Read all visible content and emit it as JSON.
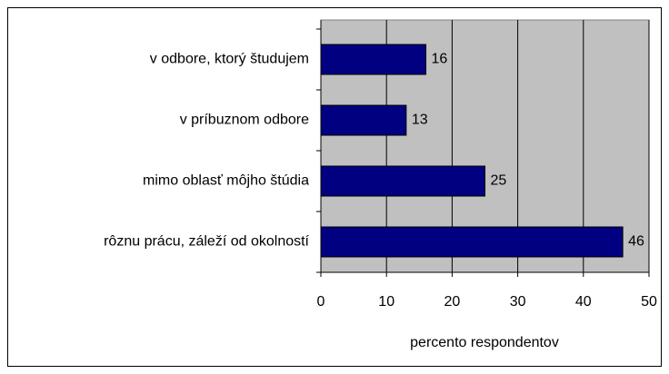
{
  "chart_data": {
    "type": "bar",
    "orientation": "horizontal",
    "categories": [
      "v odbore, ktorý študujem",
      "v príbuznom odbore",
      "mimo oblasť môjho štúdia",
      "rôznu prácu, záleží od okolností"
    ],
    "values": [
      16,
      13,
      25,
      46
    ],
    "color": "#000080",
    "xlabel": "percento respondentov",
    "xlim": [
      0,
      50
    ],
    "xticks": [
      0,
      10,
      20,
      30,
      40,
      50
    ],
    "grid": true
  }
}
